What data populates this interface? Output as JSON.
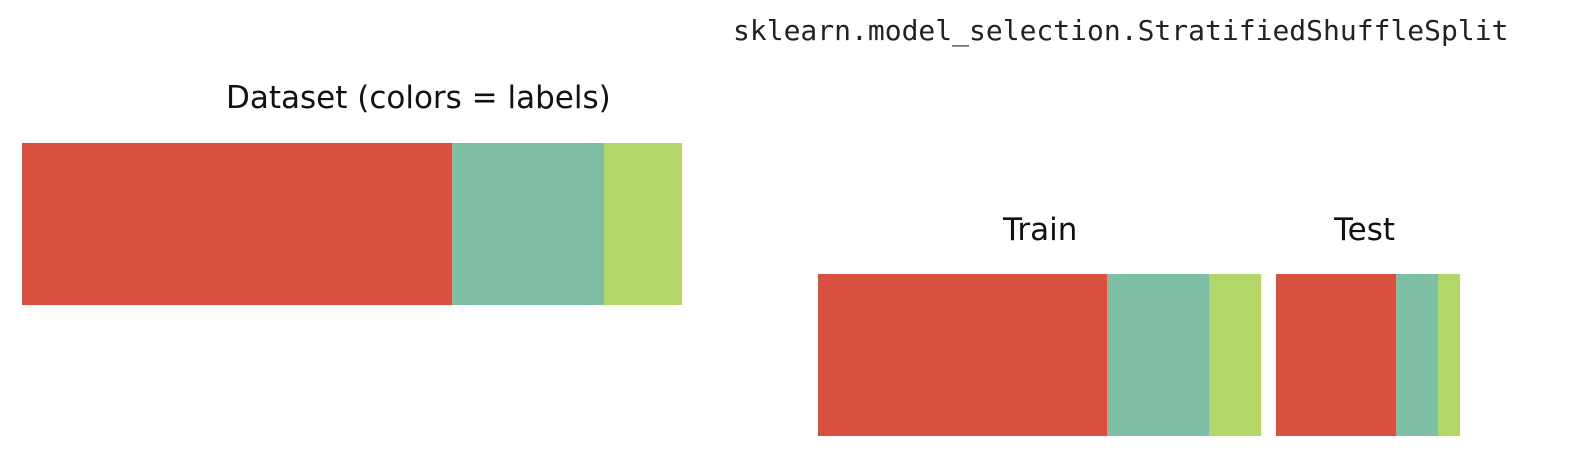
{
  "title": "sklearn.model_selection.StratifiedShuffleSplit",
  "colors": {
    "class_a": "#d95040",
    "class_b": "#7fbfa6",
    "class_c": "#b2d668"
  },
  "dataset": {
    "label": "Dataset (colors =  labels)",
    "fractions": [
      0.652,
      0.23,
      0.118
    ]
  },
  "train": {
    "label": "Train",
    "fractions": [
      0.652,
      0.23,
      0.118
    ]
  },
  "test": {
    "label": "Test",
    "fractions": [
      0.652,
      0.23,
      0.118
    ]
  }
}
